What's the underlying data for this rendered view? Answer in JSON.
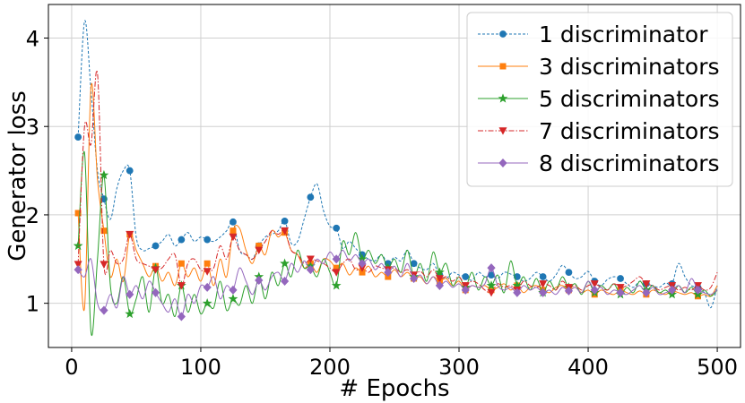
{
  "chart_data": {
    "type": "line",
    "xlabel": "# Epochs",
    "ylabel": "Generator loss",
    "xlim": [
      -18,
      518
    ],
    "ylim": [
      0.5,
      4.38
    ],
    "xticks": [
      0,
      100,
      200,
      300,
      400,
      500
    ],
    "yticks": [
      1,
      2,
      3,
      4
    ],
    "grid": true,
    "legend_position": "top-right",
    "series": [
      {
        "name": "1 discriminator",
        "color": "#1f77b4",
        "linestyle": "dashed",
        "marker": "circle",
        "x": [
          5,
          10,
          15,
          20,
          25,
          30,
          35,
          40,
          45,
          50,
          55,
          60,
          65,
          70,
          75,
          80,
          85,
          90,
          95,
          100,
          105,
          110,
          115,
          120,
          125,
          130,
          135,
          140,
          145,
          150,
          155,
          160,
          165,
          170,
          175,
          180,
          185,
          190,
          195,
          200,
          205,
          210,
          215,
          220,
          225,
          230,
          235,
          240,
          245,
          250,
          255,
          260,
          265,
          270,
          275,
          280,
          285,
          290,
          295,
          300,
          305,
          310,
          315,
          320,
          325,
          330,
          335,
          340,
          345,
          350,
          355,
          360,
          365,
          370,
          375,
          380,
          385,
          390,
          395,
          400,
          405,
          410,
          415,
          420,
          425,
          430,
          435,
          440,
          445,
          450,
          455,
          460,
          465,
          470,
          475,
          480,
          485,
          490,
          495,
          500
        ],
        "y": [
          2.88,
          4.19,
          3.4,
          2.5,
          2.18,
          1.95,
          2.3,
          2.5,
          2.5,
          1.75,
          1.6,
          1.62,
          1.65,
          1.7,
          1.78,
          1.65,
          1.72,
          1.8,
          1.7,
          1.75,
          1.72,
          1.7,
          1.75,
          1.82,
          1.92,
          1.6,
          1.55,
          1.5,
          1.65,
          1.75,
          1.78,
          1.82,
          1.93,
          1.68,
          1.7,
          1.95,
          2.2,
          2.35,
          2.05,
          1.87,
          1.85,
          1.62,
          1.7,
          1.62,
          1.55,
          1.5,
          1.48,
          1.55,
          1.45,
          1.52,
          1.48,
          1.6,
          1.45,
          1.4,
          1.38,
          1.45,
          1.32,
          1.28,
          1.35,
          1.32,
          1.3,
          1.26,
          1.35,
          1.3,
          1.32,
          1.28,
          1.35,
          1.33,
          1.3,
          1.25,
          1.28,
          1.35,
          1.3,
          1.25,
          1.32,
          1.43,
          1.35,
          1.28,
          1.3,
          1.36,
          1.25,
          1.2,
          1.27,
          1.3,
          1.28,
          1.22,
          1.18,
          1.25,
          1.22,
          1.2,
          1.18,
          1.23,
          1.22,
          1.45,
          1.3,
          1.2,
          1.18,
          1.12,
          0.95,
          1.2
        ]
      },
      {
        "name": "3 discriminators",
        "color": "#ff7f0e",
        "linestyle": "solid",
        "marker": "square",
        "x": [
          5,
          10,
          15,
          20,
          25,
          30,
          35,
          40,
          45,
          50,
          55,
          60,
          65,
          70,
          75,
          80,
          85,
          90,
          95,
          100,
          105,
          110,
          115,
          120,
          125,
          130,
          135,
          140,
          145,
          150,
          155,
          160,
          165,
          170,
          175,
          180,
          185,
          190,
          195,
          200,
          205,
          210,
          215,
          220,
          225,
          230,
          235,
          240,
          245,
          250,
          255,
          260,
          265,
          270,
          275,
          280,
          285,
          290,
          295,
          300,
          305,
          310,
          315,
          320,
          325,
          330,
          335,
          340,
          345,
          350,
          355,
          360,
          365,
          370,
          375,
          380,
          385,
          390,
          395,
          400,
          405,
          410,
          415,
          420,
          425,
          430,
          435,
          440,
          445,
          450,
          455,
          460,
          465,
          470,
          475,
          480,
          485,
          490,
          495,
          500
        ],
        "y": [
          2.02,
          0.95,
          3.45,
          2.4,
          1.82,
          1.3,
          1.5,
          1.25,
          1.78,
          1.6,
          1.45,
          1.3,
          1.42,
          1.25,
          1.35,
          1.2,
          1.45,
          1.3,
          1.4,
          1.25,
          1.45,
          1.2,
          1.5,
          1.3,
          1.82,
          1.85,
          1.6,
          1.45,
          1.65,
          1.55,
          1.82,
          1.75,
          1.8,
          1.6,
          1.55,
          1.4,
          1.45,
          1.35,
          1.5,
          1.48,
          1.4,
          1.45,
          1.32,
          1.4,
          1.35,
          1.42,
          1.3,
          1.35,
          1.3,
          1.38,
          1.3,
          1.35,
          1.28,
          1.3,
          1.22,
          1.3,
          1.25,
          1.28,
          1.2,
          1.25,
          1.15,
          1.2,
          1.18,
          1.2,
          1.15,
          1.18,
          1.22,
          1.15,
          1.2,
          1.12,
          1.18,
          1.2,
          1.15,
          1.12,
          1.18,
          1.2,
          1.15,
          1.18,
          1.12,
          1.15,
          1.1,
          1.15,
          1.12,
          1.1,
          1.15,
          1.12,
          1.1,
          1.14,
          1.1,
          1.15,
          1.12,
          1.1,
          1.14,
          1.12,
          1.1,
          1.12,
          1.08,
          1.1,
          1.08,
          1.2
        ]
      },
      {
        "name": "5 discriminators",
        "color": "#2ca02c",
        "linestyle": "solid",
        "marker": "star",
        "x": [
          5,
          10,
          15,
          20,
          25,
          30,
          35,
          40,
          45,
          50,
          55,
          60,
          65,
          70,
          75,
          80,
          85,
          90,
          95,
          100,
          105,
          110,
          115,
          120,
          125,
          130,
          135,
          140,
          145,
          150,
          155,
          160,
          165,
          170,
          175,
          180,
          185,
          190,
          195,
          200,
          205,
          210,
          215,
          220,
          225,
          230,
          235,
          240,
          245,
          250,
          255,
          260,
          265,
          270,
          275,
          280,
          285,
          290,
          295,
          300,
          305,
          310,
          315,
          320,
          325,
          330,
          335,
          340,
          345,
          350,
          355,
          360,
          365,
          370,
          375,
          380,
          385,
          390,
          395,
          400,
          405,
          410,
          415,
          420,
          425,
          430,
          435,
          440,
          445,
          450,
          455,
          460,
          465,
          470,
          475,
          480,
          485,
          490,
          495,
          500
        ],
        "y": [
          1.65,
          2.7,
          0.67,
          1.5,
          2.45,
          1.2,
          1.0,
          1.3,
          0.88,
          1.05,
          1.3,
          0.9,
          1.4,
          1.0,
          1.1,
          0.85,
          1.2,
          0.9,
          1.1,
          0.88,
          1.0,
          0.95,
          1.25,
          0.92,
          1.05,
          0.98,
          1.2,
          1.0,
          1.3,
          1.05,
          1.35,
          1.2,
          1.45,
          1.3,
          1.6,
          1.4,
          1.42,
          1.3,
          1.5,
          1.35,
          1.2,
          1.7,
          1.55,
          1.8,
          1.5,
          1.6,
          1.45,
          1.55,
          1.4,
          1.5,
          1.35,
          1.6,
          1.3,
          1.45,
          1.25,
          1.58,
          1.35,
          1.45,
          1.2,
          1.3,
          1.18,
          1.35,
          1.15,
          1.3,
          1.2,
          1.32,
          1.12,
          1.48,
          1.2,
          1.3,
          1.15,
          1.28,
          1.12,
          1.25,
          1.15,
          1.3,
          1.18,
          1.22,
          1.1,
          1.25,
          1.12,
          1.2,
          1.15,
          1.22,
          1.1,
          1.18,
          1.12,
          1.25,
          1.15,
          1.2,
          1.12,
          1.15,
          1.1,
          1.2,
          1.12,
          1.18,
          1.1,
          1.15,
          1.08,
          1.15
        ]
      },
      {
        "name": "7 discriminators",
        "color": "#d62728",
        "linestyle": "dashdot",
        "marker": "triangle-down",
        "x": [
          5,
          10,
          15,
          20,
          25,
          30,
          35,
          40,
          45,
          50,
          55,
          60,
          65,
          70,
          75,
          80,
          85,
          90,
          95,
          100,
          105,
          110,
          115,
          120,
          125,
          130,
          135,
          140,
          145,
          150,
          155,
          160,
          165,
          170,
          175,
          180,
          185,
          190,
          195,
          200,
          205,
          210,
          215,
          220,
          225,
          230,
          235,
          240,
          245,
          250,
          255,
          260,
          265,
          270,
          275,
          280,
          285,
          290,
          295,
          300,
          305,
          310,
          315,
          320,
          325,
          330,
          335,
          340,
          345,
          350,
          355,
          360,
          365,
          370,
          375,
          380,
          385,
          390,
          395,
          400,
          405,
          410,
          415,
          420,
          425,
          430,
          435,
          440,
          445,
          450,
          455,
          460,
          465,
          470,
          475,
          480,
          485,
          490,
          495,
          500
        ],
        "y": [
          1.44,
          3.0,
          2.8,
          3.6,
          1.44,
          1.6,
          1.45,
          1.5,
          1.78,
          1.5,
          1.45,
          1.42,
          1.38,
          1.4,
          1.5,
          1.55,
          1.2,
          1.45,
          1.5,
          1.38,
          1.36,
          1.4,
          1.65,
          1.5,
          1.75,
          1.6,
          1.55,
          1.5,
          1.6,
          1.7,
          1.82,
          1.78,
          1.82,
          1.6,
          1.55,
          1.45,
          1.5,
          1.48,
          1.45,
          1.4,
          1.35,
          1.45,
          1.5,
          1.38,
          1.4,
          1.35,
          1.42,
          1.4,
          1.38,
          1.4,
          1.35,
          1.38,
          1.32,
          1.36,
          1.3,
          1.38,
          1.28,
          1.3,
          1.25,
          1.3,
          1.2,
          1.25,
          1.22,
          1.15,
          1.12,
          1.22,
          1.18,
          1.2,
          1.15,
          1.25,
          1.2,
          1.18,
          1.22,
          1.2,
          1.15,
          1.25,
          1.18,
          1.2,
          1.15,
          1.2,
          1.22,
          1.18,
          1.15,
          1.22,
          1.18,
          1.2,
          1.25,
          1.3,
          1.22,
          1.2,
          1.15,
          1.18,
          1.2,
          1.15,
          1.18,
          1.15,
          1.2,
          1.15,
          1.18,
          1.35
        ]
      },
      {
        "name": "8 discriminators",
        "color": "#9467bd",
        "linestyle": "solid",
        "marker": "diamond",
        "x": [
          5,
          10,
          15,
          20,
          25,
          30,
          35,
          40,
          45,
          50,
          55,
          60,
          65,
          70,
          75,
          80,
          85,
          90,
          95,
          100,
          105,
          110,
          115,
          120,
          125,
          130,
          135,
          140,
          145,
          150,
          155,
          160,
          165,
          170,
          175,
          180,
          185,
          190,
          195,
          200,
          205,
          210,
          215,
          220,
          225,
          230,
          235,
          240,
          245,
          250,
          255,
          260,
          265,
          270,
          275,
          280,
          285,
          290,
          295,
          300,
          305,
          310,
          315,
          320,
          325,
          330,
          335,
          340,
          345,
          350,
          355,
          360,
          365,
          370,
          375,
          380,
          385,
          390,
          395,
          400,
          405,
          410,
          415,
          420,
          425,
          430,
          435,
          440,
          445,
          450,
          455,
          460,
          465,
          470,
          475,
          480,
          485,
          490,
          495,
          500
        ],
        "y": [
          1.38,
          1.3,
          1.5,
          1.0,
          0.92,
          1.1,
          0.95,
          1.3,
          1.1,
          1.2,
          1.05,
          1.25,
          1.12,
          1.0,
          0.9,
          1.05,
          0.85,
          1.1,
          1.0,
          1.2,
          1.18,
          1.3,
          1.05,
          1.2,
          1.15,
          1.4,
          1.25,
          1.1,
          1.26,
          1.15,
          1.3,
          1.35,
          1.25,
          1.45,
          1.35,
          1.48,
          1.38,
          1.5,
          1.45,
          1.58,
          1.5,
          1.6,
          1.48,
          1.55,
          1.45,
          1.5,
          1.38,
          1.45,
          1.35,
          1.42,
          1.3,
          1.45,
          1.28,
          1.32,
          1.22,
          1.3,
          1.2,
          1.25,
          1.18,
          1.22,
          1.15,
          1.2,
          1.18,
          1.22,
          1.4,
          1.2,
          1.15,
          1.18,
          1.12,
          1.2,
          1.15,
          1.18,
          1.12,
          1.15,
          1.1,
          1.18,
          1.14,
          1.18,
          1.12,
          1.25,
          1.15,
          1.18,
          1.1,
          1.15,
          1.12,
          1.1,
          1.15,
          1.2,
          1.12,
          1.18,
          1.1,
          1.12,
          1.15,
          1.2,
          1.12,
          1.28,
          1.15,
          1.12,
          1.1,
          1.15
        ]
      }
    ]
  }
}
